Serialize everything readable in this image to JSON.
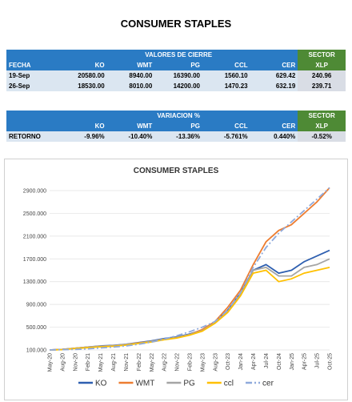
{
  "page_title": "CONSUMER STAPLES",
  "tables": [
    {
      "group": "VALORES DE CIERRE",
      "sector": "SECTOR",
      "columns": [
        "FECHA",
        "KO",
        "WMT",
        "PG",
        "CCL",
        "CER",
        "XLP"
      ],
      "rows": [
        [
          "19-Sep",
          "20580.00",
          "8940.00",
          "16390.00",
          "1560.10",
          "629.42",
          "240.96"
        ],
        [
          "26-Sep",
          "18530.00",
          "8010.00",
          "14200.00",
          "1470.23",
          "632.19",
          "239.71"
        ]
      ]
    },
    {
      "group": "VARIACION %",
      "sector": "SECTOR",
      "columns": [
        "KO",
        "WMT",
        "PG",
        "CCL",
        "CER",
        "XLP"
      ],
      "rows": [
        [
          "RETORNO",
          "-9.96%",
          "-10.40%",
          "-13.36%",
          "-5.761%",
          "0.440%",
          "-0.52%"
        ]
      ]
    }
  ],
  "chart_data": {
    "type": "line",
    "title": "CONSUMER STAPLES",
    "categories": [
      "May-20",
      "Aug-20",
      "Nov-20",
      "Feb-21",
      "May-21",
      "Aug-21",
      "Nov-21",
      "Feb-22",
      "May-22",
      "Aug-22",
      "Nov-22",
      "Feb-23",
      "May-23",
      "Aug-23",
      "Oct-23",
      "Jan-24",
      "Apr-24",
      "Jul-24",
      "Oct-24",
      "Jan-25",
      "Apr-25",
      "Jul-25",
      "Oct-25"
    ],
    "series": [
      {
        "name": "KO",
        "color": "#2e5fb0",
        "values": [
          100000,
          110000,
          130000,
          150000,
          170000,
          180000,
          200000,
          230000,
          260000,
          300000,
          330000,
          380000,
          450000,
          600000,
          800000,
          1100000,
          1500000,
          1600000,
          1450000,
          1500000,
          1650000,
          1750000,
          1850000
        ]
      },
      {
        "name": "WMT",
        "color": "#ed7d31",
        "values": [
          100000,
          110000,
          130000,
          150000,
          165000,
          175000,
          195000,
          225000,
          250000,
          290000,
          320000,
          370000,
          460000,
          600000,
          850000,
          1150000,
          1600000,
          2000000,
          2200000,
          2300000,
          2500000,
          2700000,
          2950000
        ]
      },
      {
        "name": "PG",
        "color": "#a5a5a5",
        "values": [
          100000,
          110000,
          130000,
          150000,
          165000,
          175000,
          195000,
          220000,
          250000,
          290000,
          320000,
          370000,
          440000,
          580000,
          780000,
          1080000,
          1500000,
          1550000,
          1400000,
          1400000,
          1550000,
          1600000,
          1700000
        ]
      },
      {
        "name": "ccl",
        "color": "#ffc000",
        "values": [
          100000,
          105000,
          125000,
          140000,
          155000,
          165000,
          185000,
          215000,
          240000,
          280000,
          310000,
          360000,
          430000,
          570000,
          760000,
          1050000,
          1450000,
          1500000,
          1300000,
          1350000,
          1450000,
          1500000,
          1550000
        ]
      },
      {
        "name": "cer",
        "color": "#8faadc",
        "dash": "dashdot",
        "values": [
          100000,
          105000,
          110000,
          120000,
          135000,
          150000,
          170000,
          200000,
          240000,
          290000,
          350000,
          420000,
          500000,
          600000,
          800000,
          1100000,
          1550000,
          1900000,
          2150000,
          2350000,
          2550000,
          2750000,
          2950000
        ]
      }
    ],
    "ylim": [
      100000,
      2900000
    ],
    "yticks": [
      {
        "value": 100000,
        "label": "100.000"
      },
      {
        "value": 500000,
        "label": "500.000"
      },
      {
        "value": 900000,
        "label": "900.000"
      },
      {
        "value": 1300000,
        "label": "1300.000"
      },
      {
        "value": 1700000,
        "label": "1700.000"
      },
      {
        "value": 2100000,
        "label": "2100.000"
      },
      {
        "value": 2500000,
        "label": "2500.000"
      },
      {
        "value": 2900000,
        "label": "2900.000"
      }
    ],
    "grid": true,
    "legend": "bottom"
  }
}
